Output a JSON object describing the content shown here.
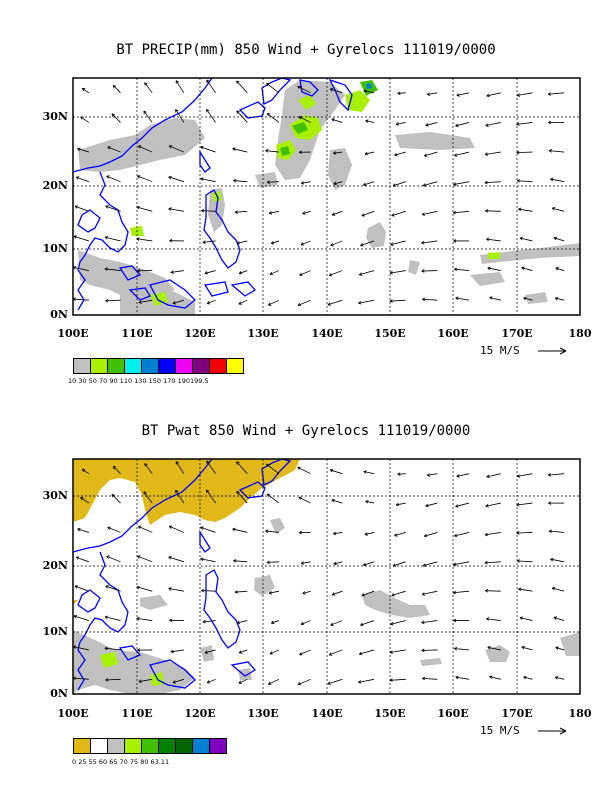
{
  "panels": [
    {
      "title": "BT PRECIP(mm) 850 Wind + Gyrelocs 111019/0000",
      "lat_labels": [
        "30N",
        "20N",
        "10N",
        "0N"
      ],
      "lon_labels": [
        "100E",
        "110E",
        "120E",
        "130E",
        "140E",
        "150E",
        "160E",
        "170E",
        "180"
      ],
      "ref_vector": "15 M/S",
      "colorbar": {
        "colors": [
          "#c0c0c0",
          "#a8f000",
          "#40c000",
          "#00f0f0",
          "#0080d0",
          "#0000ff",
          "#f000f0",
          "#800080",
          "#f00000",
          "#ffff00"
        ],
        "labels": "10  30  50  70  90  110  130  150  170  190199.5"
      },
      "shading": "precip"
    },
    {
      "title": "BT Pwat 850 Wind + Gyrelocs 111019/0000",
      "lat_labels": [
        "30N",
        "20N",
        "10N",
        "0N"
      ],
      "lon_labels": [
        "100E",
        "110E",
        "120E",
        "130E",
        "140E",
        "150E",
        "160E",
        "170E",
        "180"
      ],
      "ref_vector": "15 M/S",
      "colorbar": {
        "colors": [
          "#e0b818",
          "#ffffff",
          "#c0c0c0",
          "#a8f000",
          "#40c000",
          "#008000",
          "#006400",
          "#0080d0",
          "#8000c0"
        ],
        "labels": "0  25  55  60  65  70  75  80 63.11"
      },
      "shading": "pwat"
    }
  ]
}
